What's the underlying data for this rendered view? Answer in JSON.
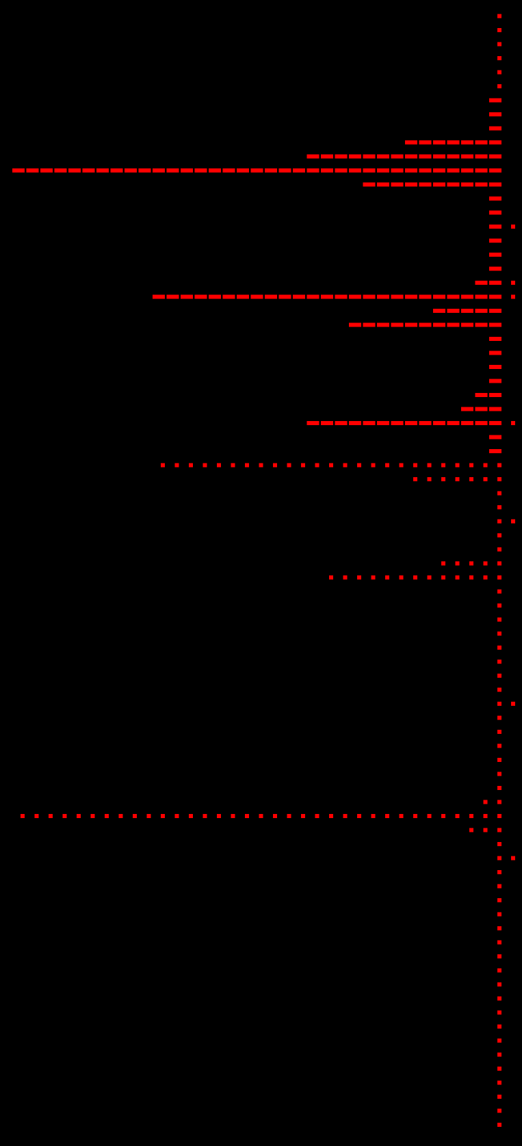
{
  "colors": {
    "background": "#000000",
    "marks": "#ff0000"
  },
  "rows": [
    {
      "dashes": 0,
      "dots": 1,
      "right_dot": false
    },
    {
      "dashes": 0,
      "dots": 1,
      "right_dot": false
    },
    {
      "dashes": 0,
      "dots": 1,
      "right_dot": false
    },
    {
      "dashes": 0,
      "dots": 1,
      "right_dot": false
    },
    {
      "dashes": 0,
      "dots": 1,
      "right_dot": false
    },
    {
      "dashes": 0,
      "dots": 1,
      "right_dot": false
    },
    {
      "dashes": 1,
      "dots": 0,
      "right_dot": false
    },
    {
      "dashes": 1,
      "dots": 0,
      "right_dot": false
    },
    {
      "dashes": 1,
      "dots": 0,
      "right_dot": false
    },
    {
      "dashes": 7,
      "dots": 0,
      "right_dot": false
    },
    {
      "dashes": 14,
      "dots": 0,
      "right_dot": false
    },
    {
      "dashes": 35,
      "dots": 0,
      "right_dot": false
    },
    {
      "dashes": 10,
      "dots": 0,
      "right_dot": false
    },
    {
      "dashes": 1,
      "dots": 0,
      "right_dot": false
    },
    {
      "dashes": 1,
      "dots": 0,
      "right_dot": false
    },
    {
      "dashes": 1,
      "dots": 0,
      "right_dot": true
    },
    {
      "dashes": 1,
      "dots": 0,
      "right_dot": false
    },
    {
      "dashes": 1,
      "dots": 0,
      "right_dot": false
    },
    {
      "dashes": 1,
      "dots": 0,
      "right_dot": false
    },
    {
      "dashes": 2,
      "dots": 0,
      "right_dot": true
    },
    {
      "dashes": 25,
      "dots": 0,
      "right_dot": true
    },
    {
      "dashes": 5,
      "dots": 0,
      "right_dot": false
    },
    {
      "dashes": 11,
      "dots": 0,
      "right_dot": false
    },
    {
      "dashes": 1,
      "dots": 0,
      "right_dot": false
    },
    {
      "dashes": 1,
      "dots": 0,
      "right_dot": false
    },
    {
      "dashes": 1,
      "dots": 0,
      "right_dot": false
    },
    {
      "dashes": 1,
      "dots": 0,
      "right_dot": false
    },
    {
      "dashes": 2,
      "dots": 0,
      "right_dot": false
    },
    {
      "dashes": 3,
      "dots": 0,
      "right_dot": false
    },
    {
      "dashes": 14,
      "dots": 0,
      "right_dot": true
    },
    {
      "dashes": 1,
      "dots": 0,
      "right_dot": false
    },
    {
      "dashes": 1,
      "dots": 0,
      "right_dot": false
    },
    {
      "dashes": 0,
      "dots": 25,
      "right_dot": false
    },
    {
      "dashes": 0,
      "dots": 7,
      "right_dot": false
    },
    {
      "dashes": 0,
      "dots": 1,
      "right_dot": false
    },
    {
      "dashes": 0,
      "dots": 1,
      "right_dot": false
    },
    {
      "dashes": 0,
      "dots": 1,
      "right_dot": true
    },
    {
      "dashes": 0,
      "dots": 1,
      "right_dot": false
    },
    {
      "dashes": 0,
      "dots": 1,
      "right_dot": false
    },
    {
      "dashes": 0,
      "dots": 5,
      "right_dot": false
    },
    {
      "dashes": 0,
      "dots": 13,
      "right_dot": false
    },
    {
      "dashes": 0,
      "dots": 1,
      "right_dot": false
    },
    {
      "dashes": 0,
      "dots": 1,
      "right_dot": false
    },
    {
      "dashes": 0,
      "dots": 1,
      "right_dot": false
    },
    {
      "dashes": 0,
      "dots": 1,
      "right_dot": false
    },
    {
      "dashes": 0,
      "dots": 1,
      "right_dot": false
    },
    {
      "dashes": 0,
      "dots": 1,
      "right_dot": false
    },
    {
      "dashes": 0,
      "dots": 1,
      "right_dot": false
    },
    {
      "dashes": 0,
      "dots": 1,
      "right_dot": false
    },
    {
      "dashes": 0,
      "dots": 1,
      "right_dot": true
    },
    {
      "dashes": 0,
      "dots": 1,
      "right_dot": false
    },
    {
      "dashes": 0,
      "dots": 1,
      "right_dot": false
    },
    {
      "dashes": 0,
      "dots": 1,
      "right_dot": false
    },
    {
      "dashes": 0,
      "dots": 1,
      "right_dot": false
    },
    {
      "dashes": 0,
      "dots": 1,
      "right_dot": false
    },
    {
      "dashes": 0,
      "dots": 1,
      "right_dot": false
    },
    {
      "dashes": 0,
      "dots": 2,
      "right_dot": false
    },
    {
      "dashes": 0,
      "dots": 35,
      "right_dot": false
    },
    {
      "dashes": 0,
      "dots": 3,
      "right_dot": false
    },
    {
      "dashes": 0,
      "dots": 1,
      "right_dot": false
    },
    {
      "dashes": 0,
      "dots": 1,
      "right_dot": true
    },
    {
      "dashes": 0,
      "dots": 1,
      "right_dot": false
    },
    {
      "dashes": 0,
      "dots": 1,
      "right_dot": false
    },
    {
      "dashes": 0,
      "dots": 1,
      "right_dot": false
    },
    {
      "dashes": 0,
      "dots": 1,
      "right_dot": false
    },
    {
      "dashes": 0,
      "dots": 1,
      "right_dot": false
    },
    {
      "dashes": 0,
      "dots": 1,
      "right_dot": false
    },
    {
      "dashes": 0,
      "dots": 1,
      "right_dot": false
    },
    {
      "dashes": 0,
      "dots": 1,
      "right_dot": false
    },
    {
      "dashes": 0,
      "dots": 1,
      "right_dot": false
    },
    {
      "dashes": 0,
      "dots": 1,
      "right_dot": false
    },
    {
      "dashes": 0,
      "dots": 1,
      "right_dot": false
    },
    {
      "dashes": 0,
      "dots": 1,
      "right_dot": false
    },
    {
      "dashes": 0,
      "dots": 1,
      "right_dot": false
    },
    {
      "dashes": 0,
      "dots": 1,
      "right_dot": false
    },
    {
      "dashes": 0,
      "dots": 1,
      "right_dot": false
    },
    {
      "dashes": 0,
      "dots": 1,
      "right_dot": false
    },
    {
      "dashes": 0,
      "dots": 1,
      "right_dot": false
    },
    {
      "dashes": 0,
      "dots": 1,
      "right_dot": false
    },
    {
      "dashes": 0,
      "dots": 1,
      "right_dot": false
    }
  ]
}
